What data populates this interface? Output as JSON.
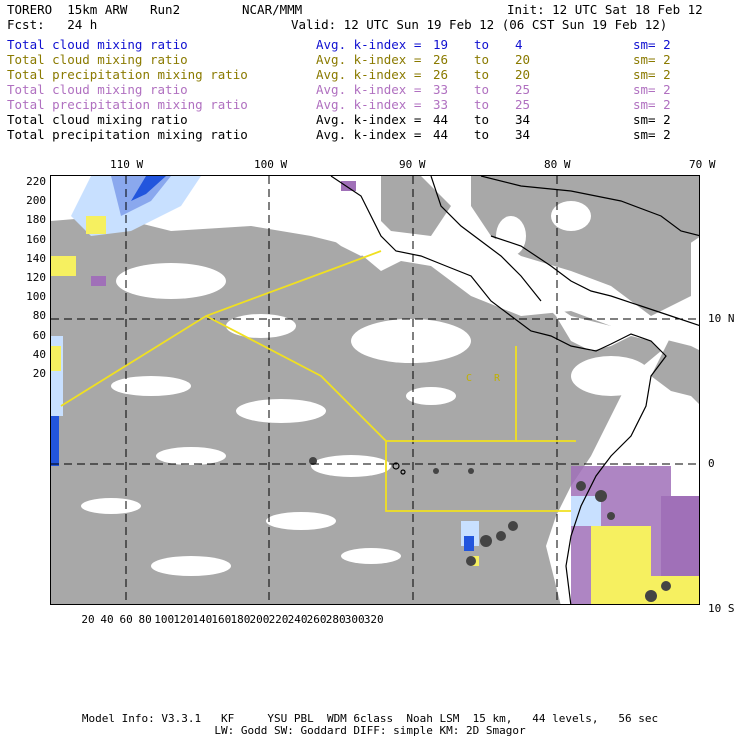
{
  "header": {
    "model_name": "TORERO  15km ARW   Run2",
    "org": "NCAR/MMM",
    "init": "Init: 12 UTC Sat 18 Feb 12",
    "fcst": "Fcst:   24 h",
    "valid": "Valid: 12 UTC Sun 19 Feb 12 (06 CST Sun 19 Feb 12)"
  },
  "legend": [
    {
      "label": "Total cloud mixing ratio",
      "kindex_label": "Avg. k-index =",
      "from": "19",
      "to_word": "to",
      "to": "4",
      "sm": "sm= 2",
      "color": "#1010d0"
    },
    {
      "label": "Total cloud mixing ratio",
      "kindex_label": "Avg. k-index =",
      "from": "26",
      "to_word": "to",
      "to": "20",
      "sm": "sm= 2",
      "color": "#8a7a00"
    },
    {
      "label": "Total precipitation mixing ratio",
      "kindex_label": "Avg. k-index =",
      "from": "26",
      "to_word": "to",
      "to": "20",
      "sm": "sm= 2",
      "color": "#8a7a00"
    },
    {
      "label": "Total cloud mixing ratio",
      "kindex_label": "Avg. k-index =",
      "from": "33",
      "to_word": "to",
      "to": "25",
      "sm": "sm= 2",
      "color": "#b070c0"
    },
    {
      "label": "Total precipitation mixing ratio",
      "kindex_label": "Avg. k-index =",
      "from": "33",
      "to_word": "to",
      "to": "25",
      "sm": "sm= 2",
      "color": "#b070c0"
    },
    {
      "label": "Total cloud mixing ratio",
      "kindex_label": "Avg. k-index =",
      "from": "44",
      "to_word": "to",
      "to": "34",
      "sm": "sm= 2",
      "color": "#000000"
    },
    {
      "label": "Total precipitation mixing ratio",
      "kindex_label": "Avg. k-index =",
      "from": "44",
      "to_word": "to",
      "to": "34",
      "sm": "sm= 2",
      "color": "#000000"
    }
  ],
  "map": {
    "lon_labels": [
      "110 W",
      "100 W",
      "90 W",
      "80 W",
      "70 W"
    ],
    "lat_labels": [
      "10 N",
      "0",
      "10 S"
    ],
    "x_ticks": [
      "20",
      "40",
      "60",
      "80",
      "100",
      "120",
      "140",
      "160",
      "180",
      "200",
      "220",
      "240",
      "260",
      "280",
      "300",
      "320"
    ],
    "y_ticks": [
      "220",
      "200",
      "180",
      "160",
      "140",
      "120",
      "100",
      "80",
      "60",
      "40",
      "20"
    ],
    "country_labels": [
      "C",
      "R"
    ],
    "colors": {
      "cloud_gray": "#a8a8a8",
      "dark_core": "#555555",
      "yellow": "#f6f060",
      "purple": "#a070b8",
      "light_blue": "#c8e0ff",
      "blue": "#2255dd",
      "boundary_yellow": "#f0e020",
      "coast": "#000000"
    }
  },
  "footer": {
    "line1": "Model Info: V3.3.1   KF     YSU PBL  WDM 6class  Noah LSM  15 km,   44 levels,   56 sec",
    "line2": "LW: Godd SW: Goddard DIFF: simple KM: 2D Smagor"
  }
}
